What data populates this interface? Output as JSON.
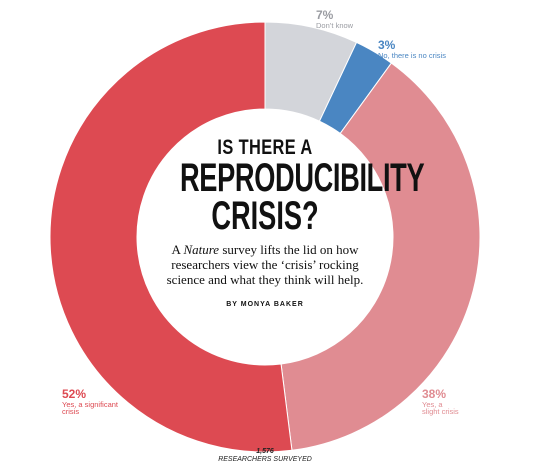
{
  "chart_data": {
    "type": "pie",
    "title": "IS THERE A REPRODUCIBILITY CRISIS?",
    "slices": [
      {
        "label": "Don’t know",
        "value": 7,
        "pct_text": "7%",
        "color": "#d3d5da"
      },
      {
        "label": "No, there is no crisis",
        "value": 3,
        "pct_text": "3%",
        "color": "#4a86c2"
      },
      {
        "label": "Yes, a slight crisis",
        "value": 38,
        "pct_text": "38%",
        "color": "#e08c92"
      },
      {
        "label": "Yes, a significant crisis",
        "value": 52,
        "pct_text": "52%",
        "color": "#dd4a52"
      }
    ]
  },
  "headline": {
    "line1": "IS THERE A",
    "line2": "REPRODUCIBILITY",
    "line3": "CRISIS?"
  },
  "subtitle": {
    "pre": "A ",
    "italic": "Nature",
    "post": " survey lifts the lid on how researchers view the ‘crisis’ rocking science and what they think will help."
  },
  "byline": "BY MONYA BAKER",
  "footer": {
    "count": "1,576",
    "label": "RESEARCHERS SURVEYED"
  },
  "label_colors": {
    "Don’t know": "#9a9ca2",
    "No, there is no crisis": "#4a86c2",
    "Yes, a slight crisis": "#e08c92",
    "Yes, a significant crisis": "#dd4a52"
  }
}
